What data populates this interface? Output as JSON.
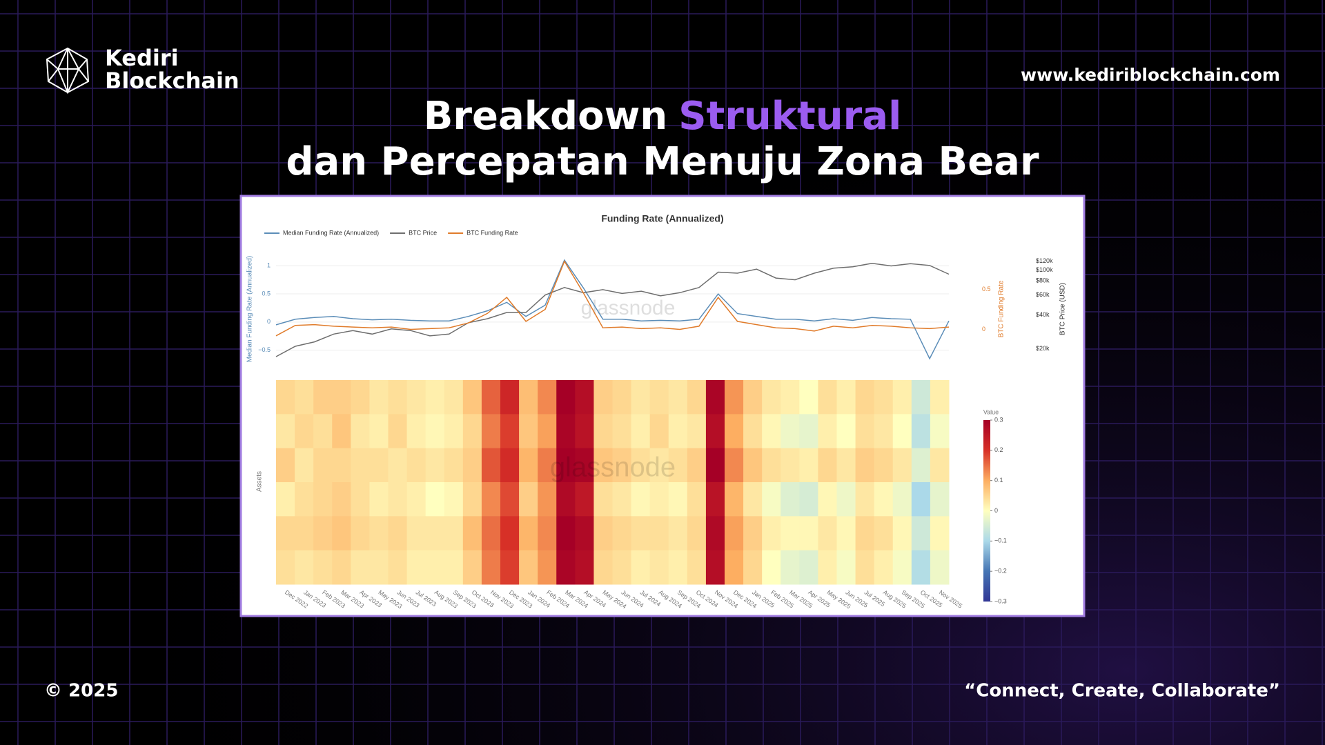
{
  "slide": {
    "logo_line1": "Kediri",
    "logo_line2": "Blockchain",
    "website": "www.kediriblockchain.com",
    "title_part1": "Breakdown",
    "title_highlight": "Struktural",
    "title_line2": "dan Percepatan Menuju Zona Bear",
    "footer_left": "© 2025",
    "footer_right": "“Connect, Create, Collaborate”"
  },
  "chart_data": [
    {
      "type": "line",
      "title": "Funding Rate (Annualized)",
      "watermark": "glassnode",
      "categories": [
        "Dec 2022",
        "Jan 2023",
        "Feb 2023",
        "Mar 2023",
        "Apr 2023",
        "May 2023",
        "Jun 2023",
        "Jul 2023",
        "Aug 2023",
        "Sep 2023",
        "Oct 2023",
        "Nov 2023",
        "Dec 2023",
        "Jan 2024",
        "Feb 2024",
        "Mar 2024",
        "Apr 2024",
        "May 2024",
        "Jun 2024",
        "Jul 2024",
        "Aug 2024",
        "Sep 2024",
        "Oct 2024",
        "Nov 2024",
        "Dec 2024",
        "Jan 2025",
        "Feb 2025",
        "Mar 2025",
        "Apr 2025",
        "May 2025",
        "Jun 2025",
        "Jul 2025",
        "Aug 2025",
        "Sep 2025",
        "Oct 2025",
        "Nov 2025"
      ],
      "ylabel": "Median Funding Rate (Annualized)",
      "y2label": "BTC Funding Rate",
      "y3label": "BTC Price (USD)",
      "ylim": [
        -0.7,
        1.15
      ],
      "yticks": [
        {
          "value": -0.5,
          "label": "−0.5"
        },
        0,
        0.5,
        1
      ],
      "y2lim": [
        -0.4,
        0.9
      ],
      "y2ticks": [
        0,
        0.5
      ],
      "y3lim": [
        15400,
        130000
      ],
      "y3scale": "log",
      "y3ticks": [
        {
          "value": 20000,
          "label": "$20k"
        },
        {
          "value": 40000,
          "label": "$40k"
        },
        {
          "value": 60000,
          "label": "$60k"
        },
        {
          "value": 80000,
          "label": "$80k"
        },
        {
          "value": 100000,
          "label": "$100k"
        },
        {
          "value": 120000,
          "label": "$120k"
        }
      ],
      "legend": "top-left",
      "series": [
        {
          "name": "Median Funding Rate (Annualized)",
          "color": "#5b8db8",
          "axis": "y",
          "values": [
            -0.05,
            0.05,
            0.08,
            0.1,
            0.06,
            0.04,
            0.05,
            0.03,
            0.02,
            0.02,
            0.1,
            0.2,
            0.35,
            0.1,
            0.3,
            1.1,
            0.6,
            0.05,
            0.05,
            0.02,
            0.03,
            0.02,
            0.05,
            0.5,
            0.15,
            0.1,
            0.05,
            0.05,
            0.02,
            0.06,
            0.03,
            0.08,
            0.06,
            0.05,
            -0.65,
            0.02
          ]
        },
        {
          "name": "BTC Price",
          "color": "#6e6e6e",
          "axis": "y3",
          "values": [
            17000,
            21000,
            23000,
            27000,
            29000,
            27000,
            30000,
            29000,
            26000,
            27000,
            34000,
            37000,
            42000,
            42000,
            60000,
            70000,
            63000,
            67000,
            62000,
            65000,
            59000,
            63000,
            70000,
            96000,
            94000,
            102000,
            85000,
            82000,
            94000,
            104000,
            107000,
            115000,
            109000,
            114000,
            110000,
            92000
          ]
        },
        {
          "name": "BTC Funding Rate",
          "color": "#e07b2a",
          "axis": "y2",
          "values": [
            -0.08,
            0.05,
            0.06,
            0.04,
            0.03,
            0.02,
            0.03,
            0.0,
            0.01,
            0.02,
            0.08,
            0.2,
            0.4,
            0.1,
            0.25,
            0.85,
            0.45,
            0.02,
            0.03,
            0.01,
            0.02,
            0.0,
            0.04,
            0.4,
            0.1,
            0.06,
            0.02,
            0.01,
            -0.02,
            0.04,
            0.02,
            0.05,
            0.04,
            0.02,
            0.01,
            0.03
          ]
        }
      ]
    },
    {
      "type": "heatmap",
      "watermark": "glassnode",
      "ylabel": "Assets",
      "colorbar_title": "Value",
      "categories": [
        "Dec 2022",
        "Jan 2023",
        "Feb 2023",
        "Mar 2023",
        "Apr 2023",
        "May 2023",
        "Jun 2023",
        "Jul 2023",
        "Aug 2023",
        "Sep 2023",
        "Oct 2023",
        "Nov 2023",
        "Dec 2023",
        "Jan 2024",
        "Feb 2024",
        "Mar 2024",
        "Apr 2024",
        "May 2024",
        "Jun 2024",
        "Jul 2024",
        "Aug 2024",
        "Sep 2024",
        "Oct 2024",
        "Nov 2024",
        "Dec 2024",
        "Jan 2025",
        "Feb 2025",
        "Mar 2025",
        "Apr 2025",
        "May 2025",
        "Jun 2025",
        "Jul 2025",
        "Aug 2025",
        "Sep 2025",
        "Oct 2025",
        "Nov 2025"
      ],
      "zlim": [
        -0.3,
        0.3
      ],
      "zticks": [
        {
          "value": -0.3,
          "label": "−0.3"
        },
        {
          "value": -0.2,
          "label": "−0.2"
        },
        {
          "value": -0.1,
          "label": "−0.1"
        },
        0,
        0.1,
        0.2,
        0.3
      ],
      "colorscale": [
        "#313695",
        "#4575b4",
        "#abd9e9",
        "#ffffbf",
        "#fdae61",
        "#d73027",
        "#a50026"
      ],
      "values": [
        [
          0.05,
          0.04,
          0.06,
          0.06,
          0.05,
          0.03,
          0.04,
          0.03,
          0.02,
          0.03,
          0.07,
          0.16,
          0.22,
          0.08,
          0.13,
          0.3,
          0.27,
          0.06,
          0.05,
          0.03,
          0.04,
          0.03,
          0.05,
          0.29,
          0.12,
          0.06,
          0.03,
          0.02,
          0.0,
          0.04,
          0.02,
          0.05,
          0.04,
          0.02,
          -0.06,
          0.02
        ],
        [
          0.03,
          0.05,
          0.04,
          0.07,
          0.03,
          0.02,
          0.05,
          0.02,
          0.01,
          0.02,
          0.05,
          0.14,
          0.19,
          0.07,
          0.11,
          0.29,
          0.26,
          0.05,
          0.04,
          0.02,
          0.05,
          0.02,
          0.03,
          0.27,
          0.1,
          0.04,
          0.01,
          -0.02,
          -0.03,
          0.02,
          0.0,
          0.04,
          0.03,
          0.0,
          -0.08,
          -0.01
        ],
        [
          0.06,
          0.03,
          0.05,
          0.05,
          0.04,
          0.04,
          0.03,
          0.04,
          0.03,
          0.04,
          0.06,
          0.17,
          0.21,
          0.09,
          0.14,
          0.3,
          0.29,
          0.07,
          0.06,
          0.04,
          0.03,
          0.04,
          0.06,
          0.3,
          0.13,
          0.07,
          0.04,
          0.03,
          0.02,
          0.05,
          0.03,
          0.06,
          0.05,
          0.03,
          -0.04,
          0.03
        ],
        [
          0.02,
          0.04,
          0.05,
          0.06,
          0.04,
          0.02,
          0.03,
          0.02,
          0.0,
          0.01,
          0.05,
          0.13,
          0.18,
          0.06,
          0.12,
          0.28,
          0.25,
          0.04,
          0.03,
          0.01,
          0.02,
          0.01,
          0.04,
          0.26,
          0.09,
          0.03,
          -0.01,
          -0.04,
          -0.05,
          0.01,
          -0.02,
          0.03,
          0.01,
          -0.02,
          -0.1,
          -0.03
        ],
        [
          0.05,
          0.05,
          0.06,
          0.07,
          0.05,
          0.04,
          0.05,
          0.03,
          0.03,
          0.03,
          0.08,
          0.15,
          0.2,
          0.09,
          0.13,
          0.3,
          0.28,
          0.06,
          0.05,
          0.04,
          0.04,
          0.03,
          0.05,
          0.28,
          0.11,
          0.06,
          0.02,
          0.01,
          0.01,
          0.03,
          0.01,
          0.05,
          0.04,
          0.01,
          -0.06,
          0.01
        ],
        [
          0.04,
          0.03,
          0.04,
          0.05,
          0.03,
          0.03,
          0.04,
          0.02,
          0.02,
          0.02,
          0.06,
          0.14,
          0.19,
          0.07,
          0.12,
          0.29,
          0.27,
          0.05,
          0.04,
          0.02,
          0.03,
          0.02,
          0.04,
          0.27,
          0.1,
          0.05,
          0.0,
          -0.03,
          -0.04,
          0.02,
          -0.01,
          0.04,
          0.02,
          -0.01,
          -0.09,
          -0.02
        ]
      ]
    }
  ]
}
